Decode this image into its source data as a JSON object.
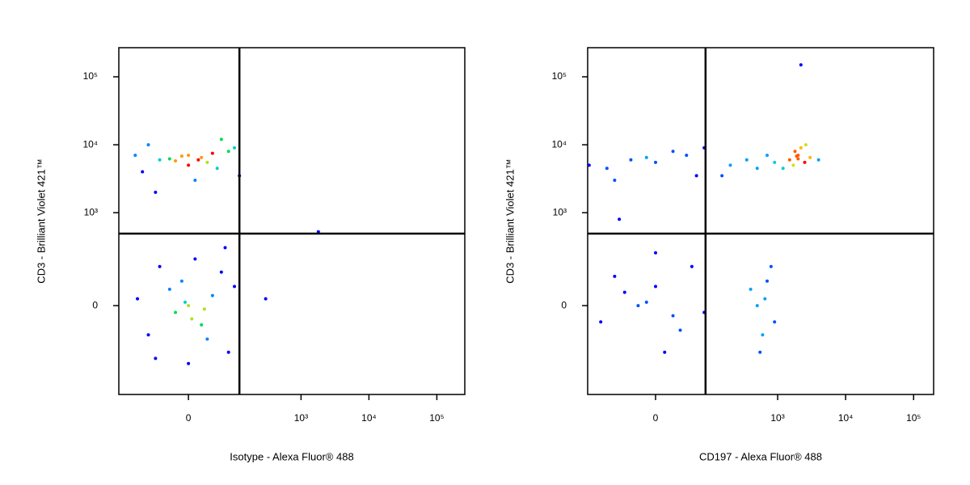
{
  "chart_data": [
    {
      "type": "scatter",
      "x_label": "Isotype - Alexa Fluor® 488",
      "y_label": "CD3 - Brilliant Violet 421™",
      "xscale": "biexponential",
      "yscale": "biexponential",
      "xlim": [
        -231,
        258000
      ],
      "ylim": [
        -870,
        268000
      ],
      "xticks": [
        0,
        {
          "value": 1000,
          "label": "10³"
        },
        {
          "value": 10000,
          "label": "10⁴"
        },
        {
          "value": 100000,
          "label": "10⁵"
        }
      ],
      "yticks": [
        0,
        {
          "value": 1000,
          "label": "10³"
        },
        {
          "value": 10000,
          "label": "10⁴"
        },
        {
          "value": 100000,
          "label": "10⁵"
        }
      ],
      "gates": {
        "x": 120,
        "y": 490
      },
      "x": [
        -50,
        0,
        30,
        80,
        -100,
        20,
        -20,
        50,
        100,
        -80,
        10,
        60,
        -30,
        0,
        40,
        -60,
        120,
        -130,
        15,
        -10,
        0,
        -30,
        20,
        60,
        -80,
        10,
        -20,
        40,
        -50,
        80,
        0,
        100,
        -120,
        30,
        -10,
        5,
        -60,
        70,
        -5,
        25,
        1800,
        300
      ],
      "y": [
        6000,
        7000,
        5500,
        8000,
        4000,
        6500,
        5800,
        4500,
        9000,
        10000,
        3000,
        12000,
        6200,
        5000,
        7500,
        2000,
        3500,
        7000,
        6000,
        6800,
        0,
        50,
        -60,
        120,
        -100,
        200,
        -20,
        30,
        150,
        -200,
        -300,
        60,
        20,
        -120,
        80,
        -40,
        -250,
        300,
        10,
        -10,
        520,
        20
      ]
    },
    {
      "type": "scatter",
      "x_label": "CD197 - Alexa Fluor® 488",
      "y_label": "CD3 - Brilliant Violet 421™",
      "xscale": "biexponential",
      "yscale": "biexponential",
      "xlim": [
        -158,
        197000
      ],
      "ylim": [
        -870,
        268000
      ],
      "xticks": [
        0,
        {
          "value": 1000,
          "label": "10³"
        },
        {
          "value": 10000,
          "label": "10⁴"
        },
        {
          "value": 100000,
          "label": "10⁵"
        }
      ],
      "yticks": [
        0,
        {
          "value": 1000,
          "label": "10³"
        },
        {
          "value": 10000,
          "label": "10⁴"
        },
        {
          "value": 100000,
          "label": "10⁵"
        }
      ],
      "gates": {
        "x": 84,
        "y": 490
      },
      "x": [
        -30,
        0,
        40,
        -80,
        20,
        -150,
        60,
        -10,
        80,
        -60,
        200,
        350,
        500,
        700,
        900,
        150,
        1500,
        2000,
        2500,
        1800,
        3000,
        1200,
        2200,
        4000,
        1700,
        2600,
        2000,
        1900,
        -20,
        0,
        30,
        -60,
        50,
        -100,
        10,
        -40,
        80,
        0,
        -10,
        20,
        500,
        700,
        600,
        800,
        400,
        900,
        650,
        550,
        2200,
        -50
      ],
      "y": [
        6000,
        5500,
        7000,
        4500,
        8000,
        5000,
        3500,
        6500,
        9000,
        3000,
        5000,
        6000,
        4500,
        7000,
        5500,
        3500,
        6000,
        7000,
        5500,
        8000,
        6500,
        4500,
        9000,
        6000,
        5000,
        10000,
        6200,
        6800,
        0,
        60,
        -80,
        100,
        150,
        -50,
        -200,
        40,
        -20,
        250,
        10,
        -30,
        0,
        80,
        -100,
        150,
        50,
        -50,
        20,
        -200,
        150000,
        800
      ]
    }
  ]
}
